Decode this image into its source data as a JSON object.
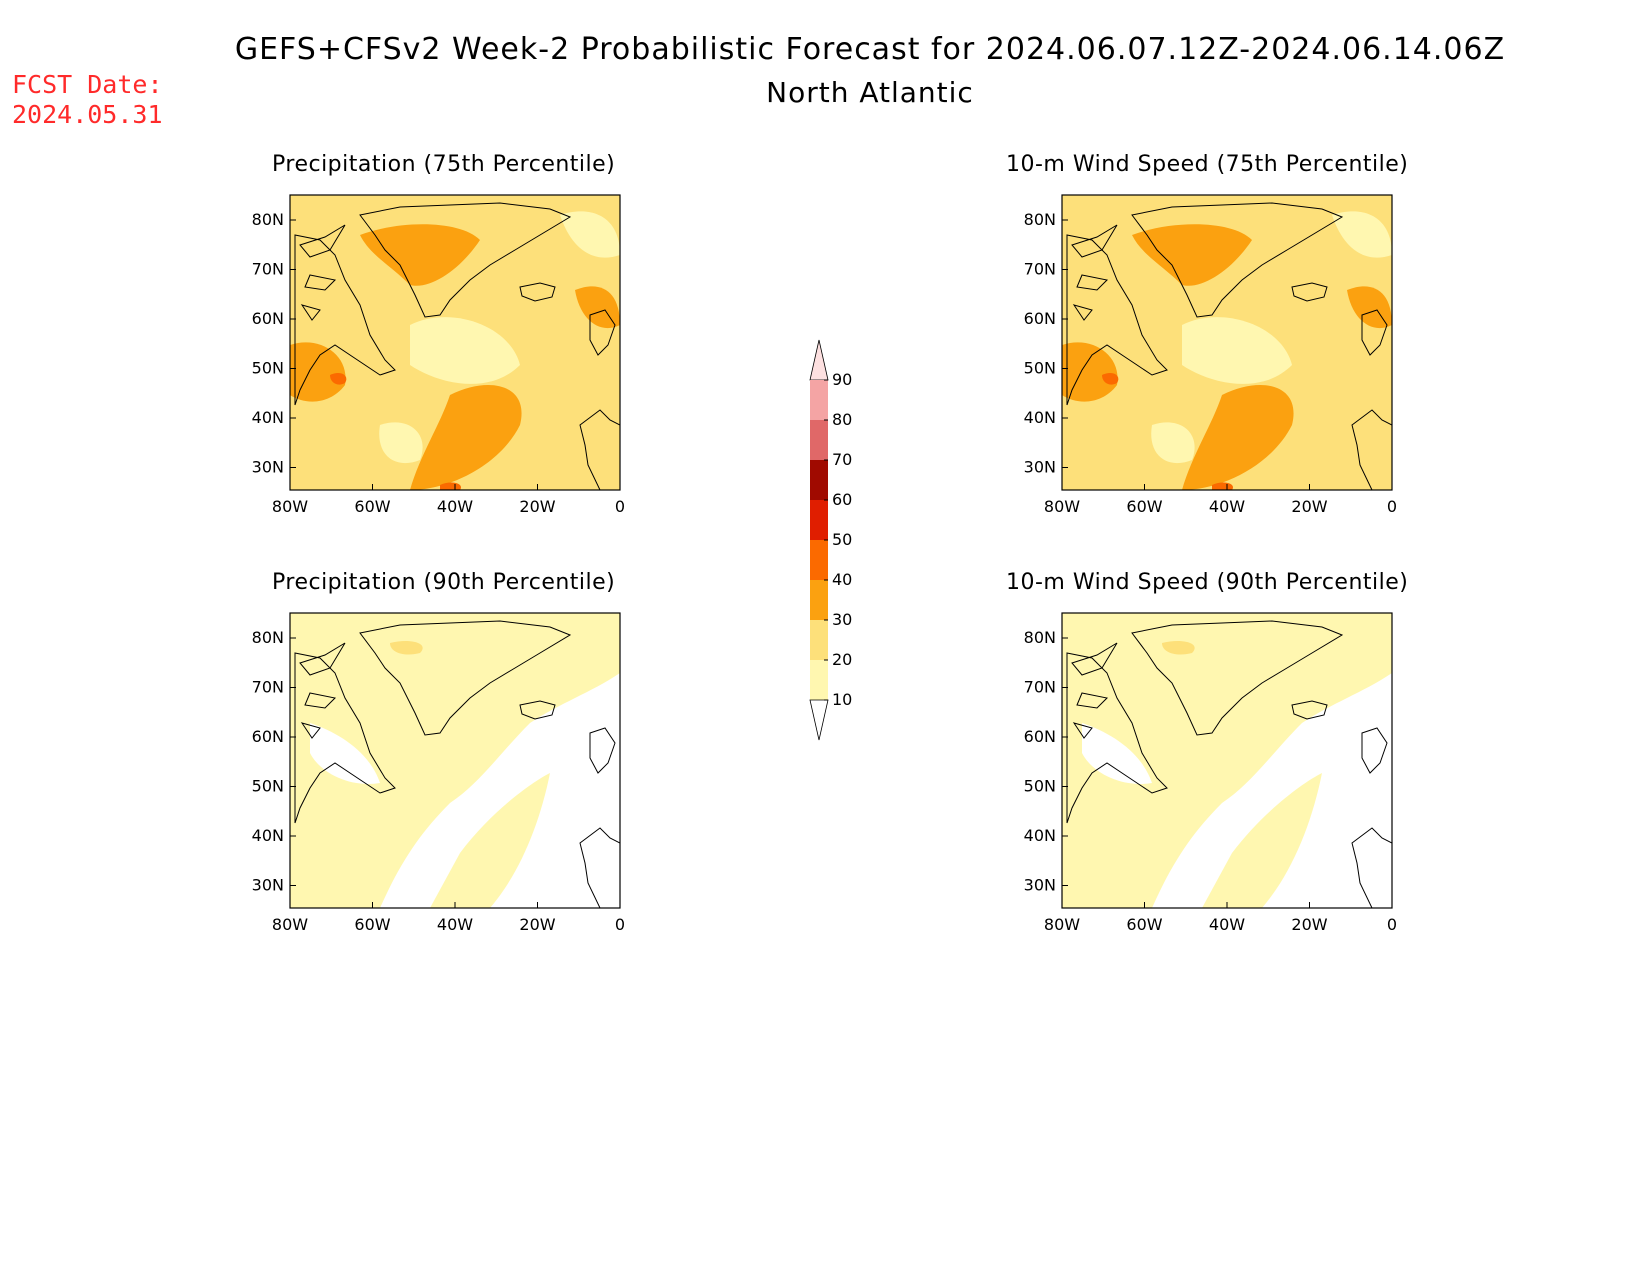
{
  "header": {
    "title": "GEFS+CFSv2 Week-2 Probabilistic Forecast for 2024.06.07.12Z-2024.06.14.06Z",
    "subtitle": "North Atlantic",
    "fcst_label": "FCST Date:",
    "fcst_date": "2024.05.31"
  },
  "axes": {
    "lat_labels": [
      "80N",
      "70N",
      "60N",
      "50N",
      "40N",
      "30N"
    ],
    "lon_labels": [
      "80W",
      "60W",
      "40W",
      "20W",
      "0"
    ]
  },
  "panels": [
    {
      "id": "precip75",
      "title": "Precipitation (75th Percentile)",
      "fill_class": "20-30",
      "has_30_40": true,
      "has_40_50": true
    },
    {
      "id": "wind75",
      "title": "10-m Wind Speed (75th Percentile)",
      "fill_class": "20-30",
      "has_30_40": true,
      "has_40_50": true
    },
    {
      "id": "precip90",
      "title": "Precipitation (90th Percentile)",
      "fill_class": "10-20",
      "has_30_40": false,
      "has_40_50": false
    },
    {
      "id": "wind90",
      "title": "10-m Wind Speed (90th Percentile)",
      "fill_class": "10-20",
      "has_30_40": false,
      "has_40_50": false
    }
  ],
  "colorbar": {
    "levels": [
      "10",
      "20",
      "30",
      "40",
      "50",
      "60",
      "70",
      "80",
      "90"
    ],
    "colors": {
      "c10_20": "#fff7b0",
      "c20_30": "#fde07a",
      "c30_40": "#fba110",
      "c40_50": "#fb6a00",
      "c50_60": "#e01e00",
      "c60_70": "#a00a00",
      "c70_80": "#e06868",
      "c80_90": "#f4a4a4",
      "c90": "#fde0e0"
    }
  }
}
